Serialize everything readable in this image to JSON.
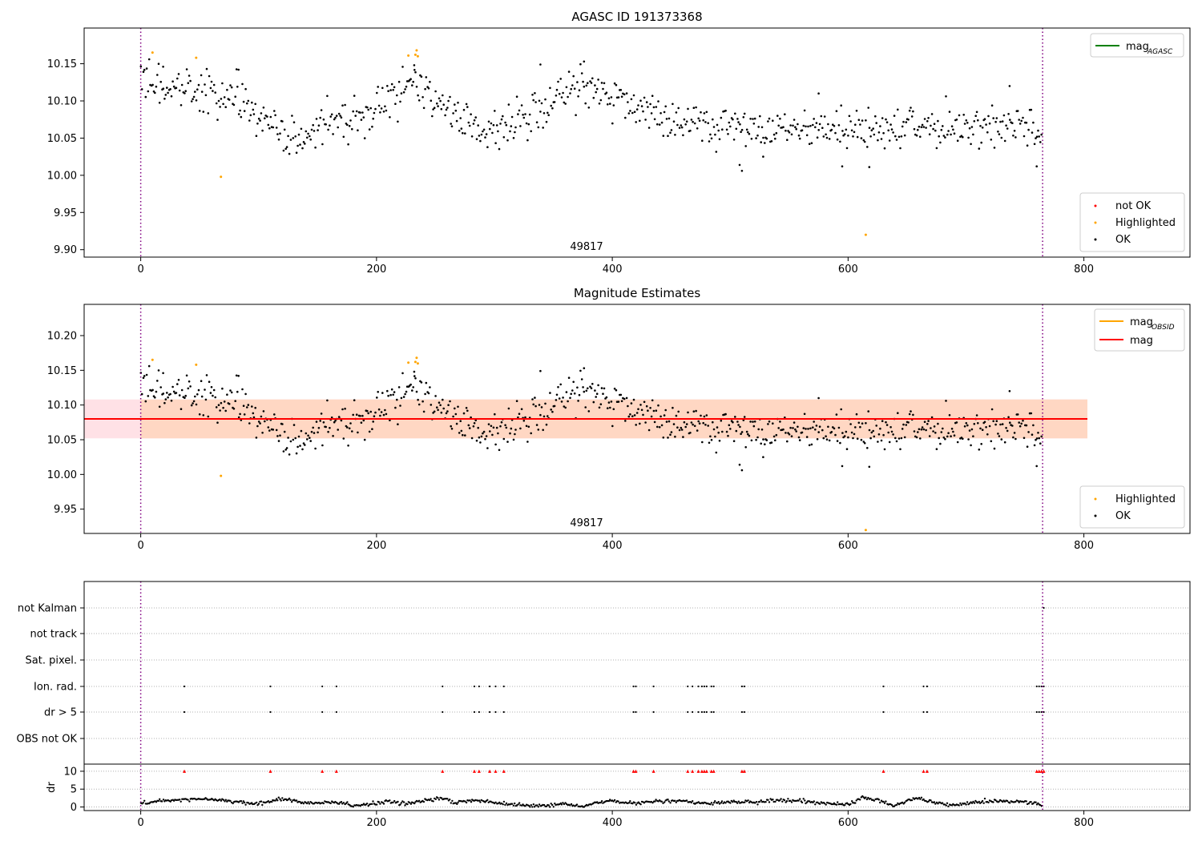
{
  "chart_data": [
    {
      "type": "scatter",
      "title": "AGASC ID 191373368",
      "annotation": "49817",
      "xlim": [
        -48,
        890
      ],
      "ylim": [
        9.89,
        10.198
      ],
      "xticks": [
        0,
        200,
        400,
        600,
        800
      ],
      "yticks": [
        9.9,
        9.95,
        10.0,
        10.05,
        10.1,
        10.15
      ],
      "vlines": [
        0,
        765
      ],
      "legend_lines": [
        {
          "label": "mag",
          "sub": "AGASC",
          "color": "#008000",
          "placement": "top-right"
        }
      ],
      "legend_points": [
        {
          "label": "not OK",
          "color": "#ff0000"
        },
        {
          "label": "Highlighted",
          "color": "#ffa500"
        },
        {
          "label": "OK",
          "color": "#000000"
        }
      ],
      "highlighted": [
        [
          10,
          10.165
        ],
        [
          47,
          10.158
        ],
        [
          68,
          9.998
        ],
        [
          227,
          10.161
        ],
        [
          233,
          10.162
        ],
        [
          234,
          10.168
        ],
        [
          235,
          10.16
        ],
        [
          615,
          9.92
        ]
      ],
      "ok_trend": [
        [
          0,
          10.125
        ],
        [
          40,
          10.118
        ],
        [
          60,
          10.11
        ],
        [
          90,
          10.098
        ],
        [
          110,
          10.075
        ],
        [
          125,
          10.045
        ],
        [
          140,
          10.05
        ],
        [
          155,
          10.065
        ],
        [
          170,
          10.075
        ],
        [
          190,
          10.085
        ],
        [
          205,
          10.1
        ],
        [
          220,
          10.112
        ],
        [
          230,
          10.125
        ],
        [
          240,
          10.115
        ],
        [
          255,
          10.1
        ],
        [
          270,
          10.082
        ],
        [
          290,
          10.055
        ],
        [
          305,
          10.07
        ],
        [
          320,
          10.072
        ],
        [
          335,
          10.09
        ],
        [
          350,
          10.105
        ],
        [
          370,
          10.112
        ],
        [
          390,
          10.105
        ],
        [
          410,
          10.1
        ],
        [
          430,
          10.085
        ],
        [
          450,
          10.072
        ],
        [
          480,
          10.065
        ],
        [
          520,
          10.06
        ],
        [
          560,
          10.062
        ],
        [
          600,
          10.06
        ],
        [
          640,
          10.062
        ],
        [
          680,
          10.065
        ],
        [
          720,
          10.072
        ],
        [
          745,
          10.07
        ],
        [
          765,
          10.05
        ]
      ],
      "ok_noise": 0.0155,
      "ok_count": 765,
      "ok_outliers": [
        [
          575,
          10.11
        ],
        [
          737,
          10.12
        ],
        [
          510,
          10.006
        ],
        [
          508,
          10.014
        ],
        [
          528,
          10.025
        ],
        [
          595,
          10.012
        ],
        [
          618,
          10.011
        ],
        [
          760,
          10.012
        ],
        [
          376,
          10.153
        ],
        [
          339,
          10.149
        ],
        [
          232,
          10.148
        ],
        [
          19,
          10.146
        ],
        [
          83,
          10.142
        ]
      ]
    },
    {
      "type": "scatter",
      "title": "Magnitude Estimates",
      "annotation": "49817",
      "xlim": [
        -48,
        890
      ],
      "ylim": [
        9.915,
        10.245
      ],
      "xticks": [
        0,
        200,
        400,
        600,
        800
      ],
      "yticks": [
        9.95,
        10.0,
        10.05,
        10.1,
        10.15,
        10.2
      ],
      "vlines": [
        0,
        765
      ],
      "mag": 10.08,
      "band_outer": {
        "x": [
          -48,
          803
        ],
        "y": [
          10.052,
          10.108
        ],
        "color": "#ffe1e6"
      },
      "band_inner": {
        "x": [
          0,
          803
        ],
        "y": [
          10.052,
          10.108
        ],
        "color": "#ffd7c3"
      },
      "legend_lines": [
        {
          "label": "mag",
          "sub": "OBSID",
          "color": "#ffa500"
        },
        {
          "label": "mag",
          "sub": "",
          "color": "#ff0000"
        }
      ],
      "legend_points": [
        {
          "label": "Highlighted",
          "color": "#ffa500"
        },
        {
          "label": "OK",
          "color": "#000000"
        }
      ]
    },
    {
      "type": "scatter",
      "xlim": [
        -48,
        890
      ],
      "xticks": [
        0,
        200,
        400,
        600,
        800
      ],
      "vlines": [
        0,
        765
      ],
      "flag_rows": [
        "not Kalman",
        "not track",
        "Sat. pixel.",
        "Ion. rad.",
        "dr > 5",
        "OBS not OK"
      ],
      "flag_x": [
        37,
        110,
        154,
        166,
        256,
        283,
        287,
        296,
        301,
        308,
        418,
        420,
        435,
        464,
        468,
        473,
        476,
        478,
        480,
        484,
        486,
        510,
        512,
        630,
        664,
        667,
        760,
        762,
        764,
        766
      ],
      "not_kalman_x": [
        766
      ],
      "dr_ylabel": "dr",
      "dr_ylim": [
        -1,
        12
      ],
      "dr_yticks": [
        0,
        5,
        10
      ],
      "dr_threshold": 10,
      "dr_trend": [
        [
          0,
          1.0
        ],
        [
          20,
          1.8
        ],
        [
          40,
          2.1
        ],
        [
          60,
          2.2
        ],
        [
          80,
          1.5
        ],
        [
          95,
          0.9
        ],
        [
          110,
          1.6
        ],
        [
          120,
          2.3
        ],
        [
          135,
          1.4
        ],
        [
          150,
          1.0
        ],
        [
          165,
          1.5
        ],
        [
          180,
          0.4
        ],
        [
          195,
          0.8
        ],
        [
          210,
          1.6
        ],
        [
          225,
          0.9
        ],
        [
          245,
          2.0
        ],
        [
          258,
          2.5
        ],
        [
          265,
          1.2
        ],
        [
          285,
          1.8
        ],
        [
          305,
          1.0
        ],
        [
          320,
          0.6
        ],
        [
          340,
          0.3
        ],
        [
          360,
          0.8
        ],
        [
          375,
          0.0
        ],
        [
          385,
          1.2
        ],
        [
          400,
          1.5
        ],
        [
          420,
          1.1
        ],
        [
          440,
          1.6
        ],
        [
          460,
          1.7
        ],
        [
          480,
          1.0
        ],
        [
          500,
          1.3
        ],
        [
          520,
          1.5
        ],
        [
          540,
          1.9
        ],
        [
          560,
          1.6
        ],
        [
          580,
          1.0
        ],
        [
          600,
          0.7
        ],
        [
          612,
          2.6
        ],
        [
          625,
          2.0
        ],
        [
          640,
          0.2
        ],
        [
          655,
          2.4
        ],
        [
          670,
          1.5
        ],
        [
          690,
          0.5
        ],
        [
          710,
          1.4
        ],
        [
          730,
          1.6
        ],
        [
          750,
          1.5
        ],
        [
          765,
          0.5
        ]
      ]
    }
  ]
}
